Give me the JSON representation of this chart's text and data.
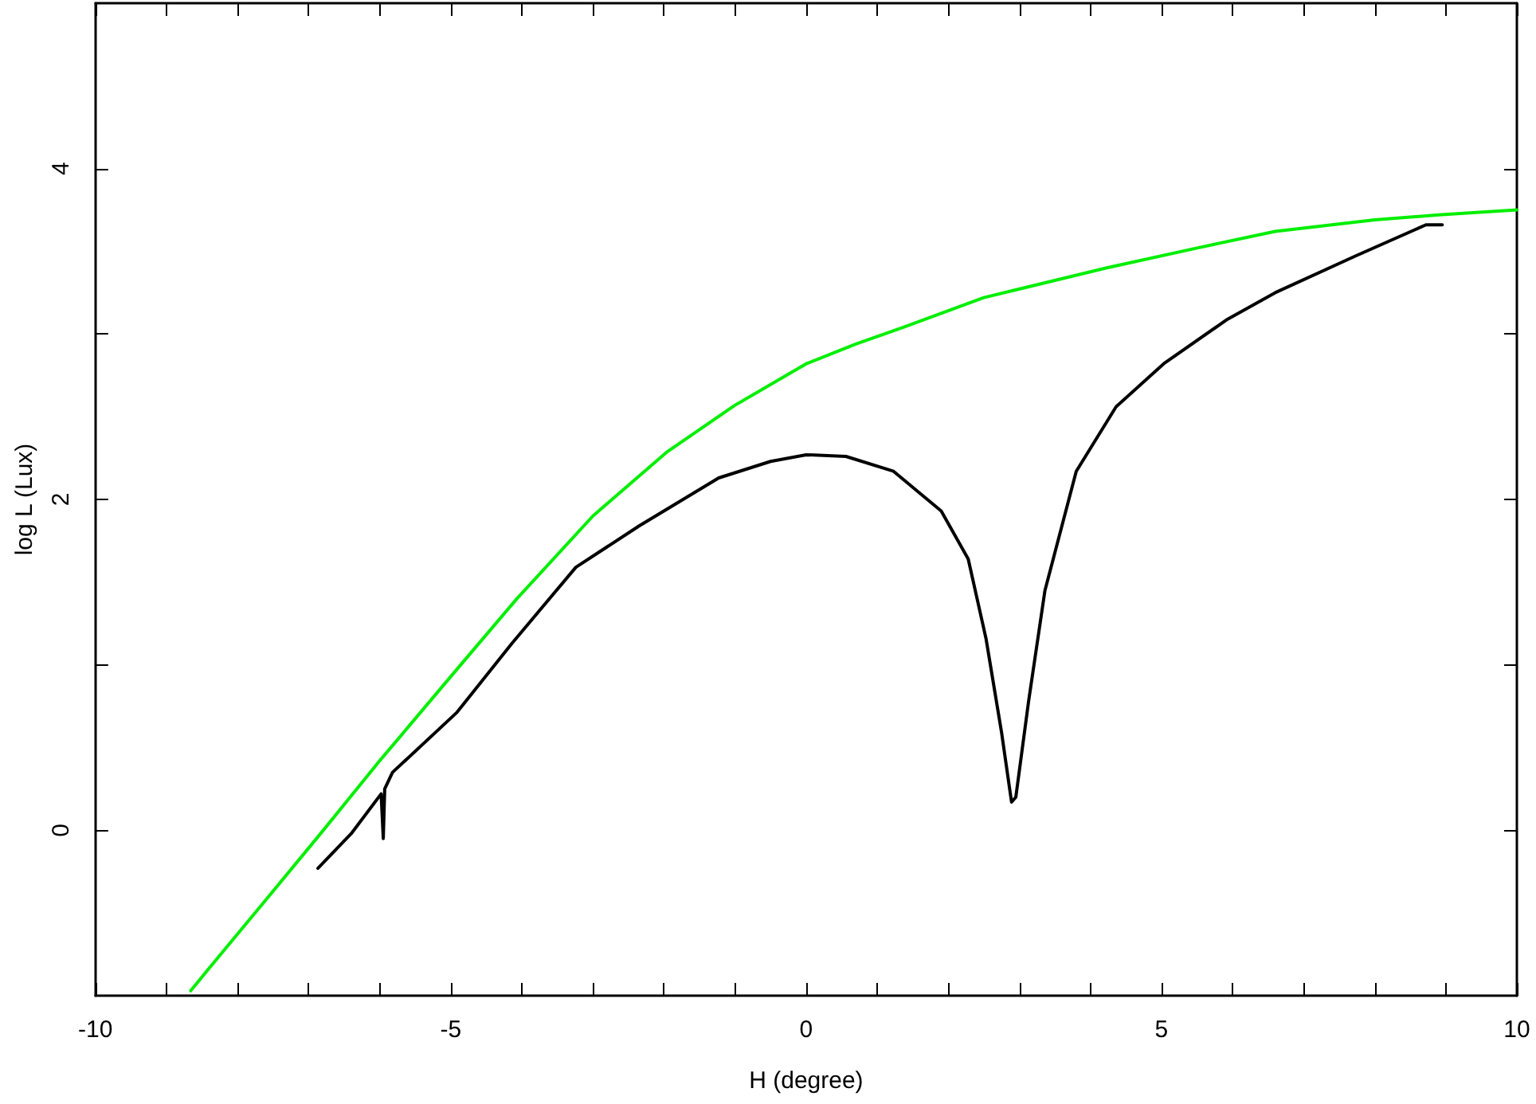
{
  "chart_data": {
    "type": "line",
    "xlabel": "H (degree)",
    "ylabel": "log L (Lux)",
    "xlim": [
      -10,
      10
    ],
    "ylim": [
      -1,
      5
    ],
    "xticks": [
      -10,
      {
        "value": -9,
        "label": null
      },
      {
        "value": -8,
        "label": null
      },
      {
        "value": -7,
        "label": null
      },
      {
        "value": -6,
        "label": null
      },
      -5,
      {
        "value": -4,
        "label": null
      },
      {
        "value": -3,
        "label": null
      },
      {
        "value": -2,
        "label": null
      },
      {
        "value": -1,
        "label": null
      },
      0,
      {
        "value": 1,
        "label": null
      },
      {
        "value": 2,
        "label": null
      },
      {
        "value": 3,
        "label": null
      },
      {
        "value": 4,
        "label": null
      },
      5,
      {
        "value": 6,
        "label": null
      },
      {
        "value": 7,
        "label": null
      },
      {
        "value": 8,
        "label": null
      },
      {
        "value": 9,
        "label": null
      },
      10
    ],
    "yticks": [
      0,
      {
        "value": 1,
        "label": null
      },
      2,
      {
        "value": 3,
        "label": null
      },
      4
    ],
    "grid": false,
    "marker": "none",
    "line_style": "solid",
    "series": [
      {
        "color": "#00ee00",
        "x": [
          -8.66,
          -8.2,
          -7.6,
          -6.87,
          -6.0,
          -4.92,
          -4.07,
          -3.0,
          -1.95,
          -1.0,
          0,
          0.7,
          1.36,
          2.5,
          4.23,
          5.5,
          6.6,
          8.0,
          8.9,
          10
        ],
        "values": [
          -0.97,
          -0.73,
          -0.42,
          -0.04,
          0.42,
          0.97,
          1.4,
          1.9,
          2.29,
          2.57,
          2.82,
          2.94,
          3.04,
          3.22,
          3.4,
          3.52,
          3.62,
          3.69,
          3.72,
          3.75
        ]
      },
      {
        "color": "#000000",
        "x": [
          -6.87,
          -6.4,
          -5.98,
          -5.95,
          -5.93,
          -5.82,
          -4.92,
          -4.14,
          -3.24,
          -2.35,
          -1.23,
          -0.5,
          0,
          0.56,
          1.23,
          1.9,
          2.28,
          2.53,
          2.75,
          2.89,
          2.95,
          3.13,
          3.36,
          3.8,
          4.36,
          5.03,
          5.93,
          6.6,
          7.72,
          8.72,
          8.95
        ],
        "values": [
          -0.23,
          -0.02,
          0.22,
          -0.05,
          0.25,
          0.35,
          0.71,
          1.13,
          1.59,
          1.84,
          2.13,
          2.23,
          2.27,
          2.26,
          2.17,
          1.93,
          1.64,
          1.16,
          0.59,
          0.17,
          0.2,
          0.78,
          1.45,
          2.17,
          2.56,
          2.82,
          3.09,
          3.25,
          3.47,
          3.66,
          3.66
        ]
      }
    ]
  }
}
